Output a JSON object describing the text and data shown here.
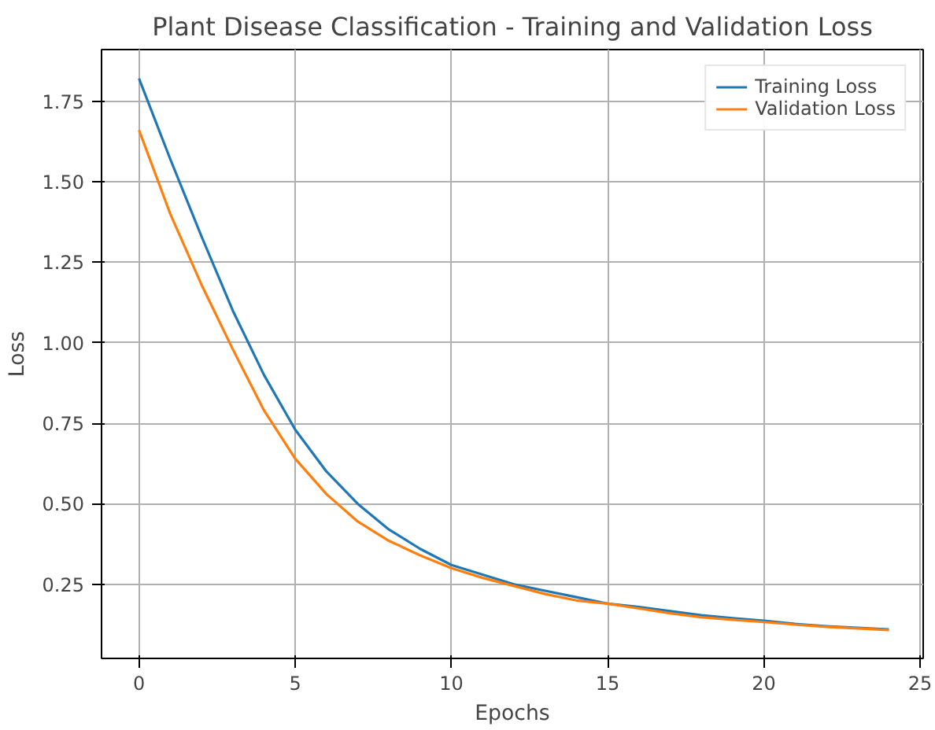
{
  "chart_data": {
    "type": "line",
    "title": "Plant Disease Classification - Training and Validation Loss",
    "xlabel": "Epochs",
    "ylabel": "Loss",
    "x": [
      0,
      1,
      2,
      3,
      4,
      5,
      6,
      7,
      8,
      9,
      10,
      11,
      12,
      13,
      14,
      15,
      16,
      17,
      18,
      19,
      20,
      21,
      22,
      23,
      24
    ],
    "series": [
      {
        "name": "Training Loss",
        "color": "#1f77b4",
        "values": [
          1.82,
          1.57,
          1.33,
          1.1,
          0.9,
          0.73,
          0.6,
          0.5,
          0.42,
          0.36,
          0.31,
          0.28,
          0.25,
          0.23,
          0.21,
          0.19,
          0.18,
          0.167,
          0.154,
          0.145,
          0.137,
          0.127,
          0.12,
          0.115,
          0.11
        ]
      },
      {
        "name": "Validation Loss",
        "color": "#ff7f0e",
        "values": [
          1.66,
          1.4,
          1.18,
          0.98,
          0.79,
          0.64,
          0.53,
          0.445,
          0.385,
          0.34,
          0.3,
          0.27,
          0.245,
          0.22,
          0.2,
          0.19,
          0.175,
          0.16,
          0.148,
          0.14,
          0.133,
          0.125,
          0.118,
          0.113,
          0.108
        ]
      }
    ],
    "xlim": [
      -1.2,
      25.1
    ],
    "ylim": [
      0.02,
      1.91
    ],
    "xticks": [
      0,
      5,
      10,
      15,
      20,
      25
    ],
    "yticks": [
      {
        "value": 0.25,
        "label": "0.25"
      },
      {
        "value": 0.5,
        "label": "0.50"
      },
      {
        "value": 0.75,
        "label": "0.75"
      },
      {
        "value": 1.0,
        "label": "1.00"
      },
      {
        "value": 1.25,
        "label": "1.25"
      },
      {
        "value": 1.5,
        "label": "1.50"
      },
      {
        "value": 1.75,
        "label": "1.75"
      }
    ],
    "grid": true,
    "legend": "top right",
    "line_style": "solid",
    "marker": "none"
  }
}
